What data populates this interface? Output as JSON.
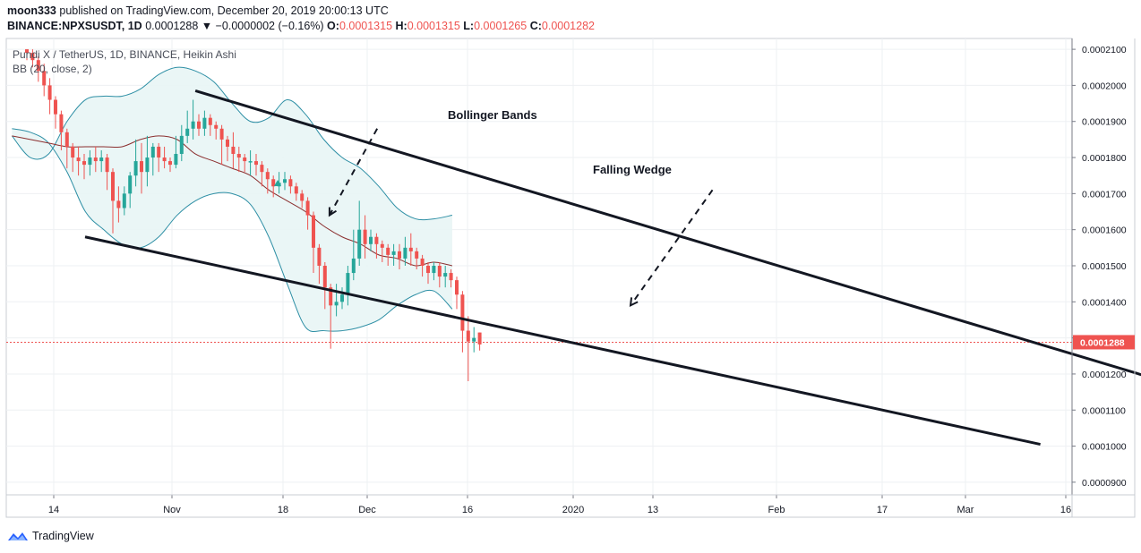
{
  "header": {
    "publisher": "moon333",
    "published_text": "published on TradingView.com, December 20, 2019 20:00:13 UTC",
    "symbol": "BINANCE:NPXSUSDT, 1D",
    "last": "0.0001288",
    "change": "▼ −0.0000002 (−0.16%)",
    "o_label": "O:",
    "o_value": "0.0001315",
    "h_label": "H:",
    "h_value": "0.0001315",
    "l_label": "L:",
    "l_value": "0.0001265",
    "c_label": "C:",
    "c_value": "0.0001282"
  },
  "footer": {
    "brand": "TradingView"
  },
  "chart_data": {
    "type": "candlestick",
    "legend": [
      "Pundi X / TetherUS, 1D, BINANCE, Heikin Ashi",
      "BB (20, close, 2)"
    ],
    "annotations": [
      "Bollinger Bands",
      "Falling Wedge"
    ],
    "last_price_label": "0.0001288",
    "y_ticks": [
      "0.0002100",
      "0.0002000",
      "0.0001900",
      "0.0001800",
      "0.0001700",
      "0.0001600",
      "0.0001500",
      "0.0001400",
      "0.0001300",
      "0.0001200",
      "0.0001100",
      "0.0001000",
      "0.0000900"
    ],
    "x_ticks": [
      "14",
      "Nov",
      "18",
      "Dec",
      "16",
      "2020",
      "13",
      "Feb",
      "17",
      "Mar",
      "16"
    ],
    "ylim": [
      8.65e-05,
      0.000213
    ],
    "colors": {
      "up": "#26a69a",
      "down": "#ef5350",
      "band": "#2e8fa5",
      "basis": "#8b2f2f",
      "band_fill": "#e8f5f5"
    },
    "candles": [
      [
        0.00021,
        0.000209,
        0.00021,
        0.000207
      ],
      [
        0.000209,
        0.000207,
        0.00021,
        0.000205
      ],
      [
        0.000207,
        0.000204,
        0.000208,
        0.000201
      ],
      [
        0.000204,
        0.0002,
        0.000206,
        0.000197
      ],
      [
        0.0002,
        0.000196,
        0.000202,
        0.000192
      ],
      [
        0.000196,
        0.000192,
        0.000197,
        0.000188
      ],
      [
        0.000192,
        0.000187,
        0.000193,
        0.000182
      ],
      [
        0.000187,
        0.000183,
        0.000188,
        0.000177
      ],
      [
        0.000183,
        0.00018,
        0.000184,
        0.000176
      ],
      [
        0.00018,
        0.000179,
        0.000183,
        0.000175
      ],
      [
        0.000179,
        0.000178,
        0.000181,
        0.000174
      ],
      [
        0.000178,
        0.00018,
        0.000182,
        0.000175
      ],
      [
        0.00018,
        0.000179,
        0.000183,
        0.000176
      ],
      [
        0.000179,
        0.00018,
        0.000182,
        0.000176
      ],
      [
        0.00018,
        0.000176,
        0.000181,
        0.000171
      ],
      [
        0.000176,
        0.000168,
        0.000177,
        0.000159
      ],
      [
        0.000168,
        0.000166,
        0.000172,
        0.000162
      ],
      [
        0.000166,
        0.00017,
        0.000172,
        0.000164
      ],
      [
        0.00017,
        0.000175,
        0.000176,
        0.000166
      ],
      [
        0.000175,
        0.000179,
        0.000185,
        0.000172
      ],
      [
        0.000179,
        0.000176,
        0.000184,
        0.00017
      ],
      [
        0.000176,
        0.00018,
        0.000186,
        0.000172
      ],
      [
        0.00018,
        0.000183,
        0.000184,
        0.000175
      ],
      [
        0.000183,
        0.00018,
        0.000184,
        0.000176
      ],
      [
        0.00018,
        0.000179,
        0.000183,
        0.000177
      ],
      [
        0.000179,
        0.000178,
        0.00018,
        0.000176
      ],
      [
        0.000178,
        0.000181,
        0.000186,
        0.000177
      ],
      [
        0.000181,
        0.000186,
        0.000189,
        0.000179
      ],
      [
        0.000186,
        0.000188,
        0.000193,
        0.000184
      ],
      [
        0.000188,
        0.00019,
        0.000196,
        0.000185
      ],
      [
        0.00019,
        0.000188,
        0.000192,
        0.000186
      ],
      [
        0.000188,
        0.000191,
        0.000193,
        0.000186
      ],
      [
        0.000191,
        0.000189,
        0.000192,
        0.000186
      ],
      [
        0.000189,
        0.000188,
        0.00019,
        0.000185
      ],
      [
        0.000188,
        0.000185,
        0.000189,
        0.000178
      ],
      [
        0.000185,
        0.000183,
        0.000186,
        0.000179
      ],
      [
        0.000183,
        0.000181,
        0.000187,
        0.000177
      ],
      [
        0.000181,
        0.00018,
        0.000183,
        0.000176
      ],
      [
        0.00018,
        0.000179,
        0.000181,
        0.000176
      ],
      [
        0.000179,
        0.000179,
        0.000182,
        0.000175
      ],
      [
        0.000179,
        0.000178,
        0.000181,
        0.000175
      ],
      [
        0.000178,
        0.000176,
        0.000179,
        0.000172
      ],
      [
        0.000176,
        0.000174,
        0.000177,
        0.00017
      ],
      [
        0.000174,
        0.000172,
        0.000175,
        0.000169
      ],
      [
        0.000172,
        0.000173,
        0.000176,
        0.00017
      ],
      [
        0.000173,
        0.000174,
        0.000176,
        0.000171
      ],
      [
        0.000174,
        0.000172,
        0.000175,
        0.00017
      ],
      [
        0.000172,
        0.00017,
        0.000173,
        0.000168
      ],
      [
        0.00017,
        0.000168,
        0.000171,
        0.000166
      ],
      [
        0.000168,
        0.000164,
        0.000169,
        0.00016
      ],
      [
        0.000164,
        0.000155,
        0.000165,
        0.000148
      ],
      [
        0.000155,
        0.00015,
        0.000156,
        0.000145
      ],
      [
        0.00015,
        0.000144,
        0.000151,
        0.000138
      ],
      [
        0.000144,
        0.000139,
        0.000145,
        0.000127
      ],
      [
        0.000139,
        0.00014,
        0.000145,
        0.000136
      ],
      [
        0.00014,
        0.000142,
        0.000144,
        0.000138
      ],
      [
        0.000142,
        0.000148,
        0.00015,
        0.000139
      ],
      [
        0.000148,
        0.000152,
        0.00016,
        0.000146
      ],
      [
        0.000152,
        0.00016,
        0.000168,
        0.00015
      ],
      [
        0.00016,
        0.000156,
        0.000164,
        0.000152
      ],
      [
        0.000156,
        0.000158,
        0.00016,
        0.000154
      ],
      [
        0.000158,
        0.000156,
        0.000159,
        0.000152
      ],
      [
        0.000156,
        0.000155,
        0.000157,
        0.000151
      ],
      [
        0.000155,
        0.000153,
        0.000156,
        0.00015
      ],
      [
        0.000153,
        0.000154,
        0.000156,
        0.00015
      ],
      [
        0.000154,
        0.000152,
        0.000156,
        0.000149
      ],
      [
        0.000152,
        0.000155,
        0.000158,
        0.00015
      ],
      [
        0.000155,
        0.000154,
        0.000159,
        0.00015
      ],
      [
        0.000154,
        0.000152,
        0.000155,
        0.000149
      ],
      [
        0.000152,
        0.00015,
        0.000153,
        0.000147
      ],
      [
        0.00015,
        0.000148,
        0.000151,
        0.000145
      ],
      [
        0.000148,
        0.00015,
        0.000151,
        0.000146
      ],
      [
        0.00015,
        0.000147,
        0.000151,
        0.000144
      ],
      [
        0.000147,
        0.000148,
        0.00015,
        0.000144
      ],
      [
        0.000148,
        0.000146,
        0.000149,
        0.000144
      ],
      [
        0.000146,
        0.000142,
        0.000147,
        0.000138
      ],
      [
        0.000142,
        0.000132,
        0.000143,
        0.000126
      ],
      [
        0.000132,
        0.000129,
        0.000136,
        0.000118
      ],
      [
        0.000129,
        0.00013,
        0.000133,
        0.000126
      ],
      [
        0.0001315,
        0.0001282,
        0.0001315,
        0.0001265
      ]
    ],
    "bb_upper": [
      0.000186,
      0.00018,
      0.000181,
      0.00019,
      0.000196,
      0.000197,
      0.000197,
      0.000199,
      0.000203,
      0.000205,
      0.000204,
      0.000201,
      0.000195,
      0.00019,
      0.000191,
      0.000196,
      0.000192,
      0.000185,
      0.00018,
      0.000177,
      0.000172,
      0.000166,
      0.000163,
      0.000163,
      0.000164
    ],
    "bb_basis": [
      0.000186,
      0.000185,
      0.000184,
      0.000183,
      0.000183,
      0.000183,
      0.000183,
      0.000185,
      0.000186,
      0.000185,
      0.000181,
      0.000179,
      0.000177,
      0.000175,
      0.000171,
      0.000168,
      0.000165,
      0.000161,
      0.000158,
      0.000156,
      0.000153,
      0.000152,
      0.00015,
      0.000151,
      0.00015
    ],
    "bb_lower": [
      0.000188,
      0.000187,
      0.000184,
      0.000176,
      0.000165,
      0.00016,
      0.000156,
      0.000155,
      0.000158,
      0.000164,
      0.000168,
      0.00017,
      0.00017,
      0.000167,
      0.000158,
      0.000145,
      0.000133,
      0.000132,
      0.000132,
      0.000133,
      0.000135,
      0.000139,
      0.000142,
      0.000143,
      0.000138
    ],
    "bb_x_start": 1,
    "bb_x_step": 3.2,
    "wedge_upper": [
      [
        7.4,
        0.0001985
      ],
      [
        73.7,
        0.0001163
      ]
    ],
    "wedge_lower": [
      [
        0,
        0.000158
      ],
      [
        64.1,
        0.0001005
      ]
    ],
    "arrow_bollinger": [
      [
        19.6,
        0.000188
      ],
      [
        16.4,
        0.000164
      ]
    ],
    "arrow_wedge": [
      [
        42.1,
        0.000171
      ],
      [
        36.6,
        0.000139
      ]
    ]
  }
}
